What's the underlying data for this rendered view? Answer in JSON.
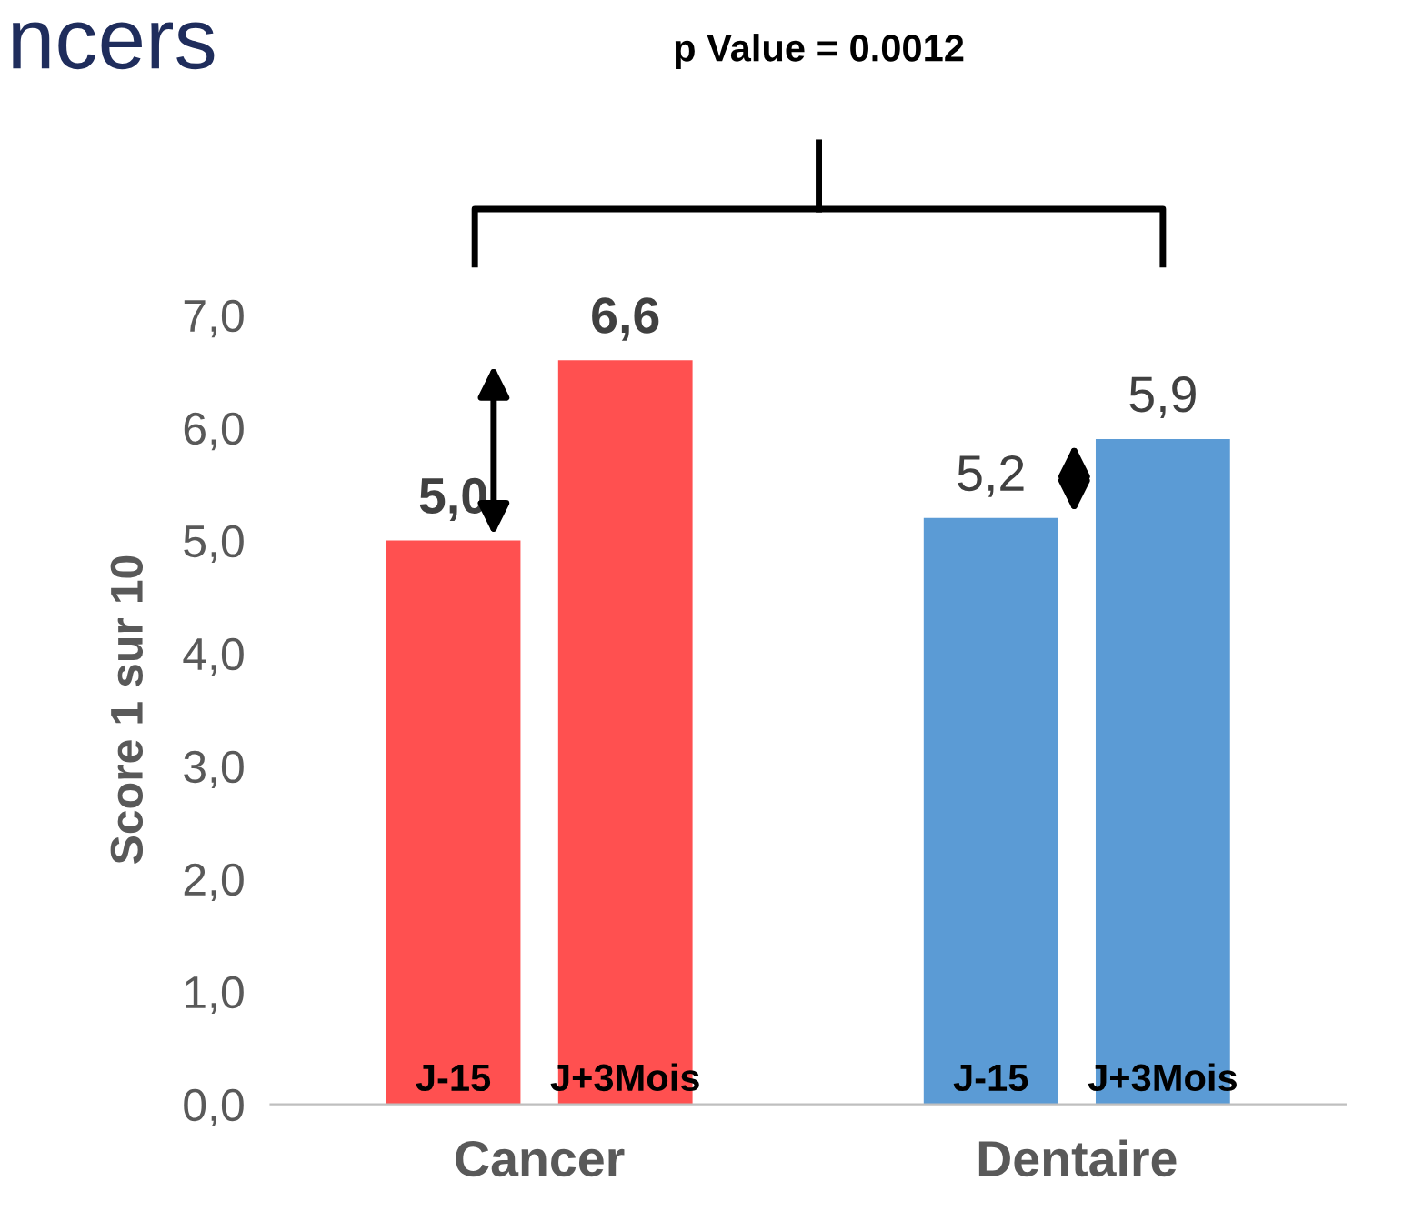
{
  "chart_data": {
    "type": "bar",
    "title": "ncers",
    "ylabel": "Score 1 sur 10",
    "categories": [
      "Cancer",
      "Dentaire"
    ],
    "series": [
      {
        "name": "J-15",
        "colors": [
          "#ff5050",
          "#5b9bd5"
        ],
        "values": [
          5.0,
          5.2
        ],
        "value_labels": [
          "5,0",
          "5,2"
        ]
      },
      {
        "name": "J+3Mois",
        "colors": [
          "#ff5050",
          "#5b9bd5"
        ],
        "values": [
          6.6,
          5.9
        ],
        "value_labels": [
          "6,6",
          "5,9"
        ]
      }
    ],
    "ylim": [
      0,
      7
    ],
    "yticks": [
      {
        "value": 0,
        "label": "0,0"
      },
      {
        "value": 1,
        "label": "1,0"
      },
      {
        "value": 2,
        "label": "2,0"
      },
      {
        "value": 3,
        "label": "3,0"
      },
      {
        "value": 4,
        "label": "4,0"
      },
      {
        "value": 5,
        "label": "5,0"
      },
      {
        "value": 6,
        "label": "6,0"
      },
      {
        "value": 7,
        "label": "7,0"
      }
    ],
    "annotations": [
      "p Value = 0.0012"
    ],
    "grid": false,
    "legend": false
  }
}
